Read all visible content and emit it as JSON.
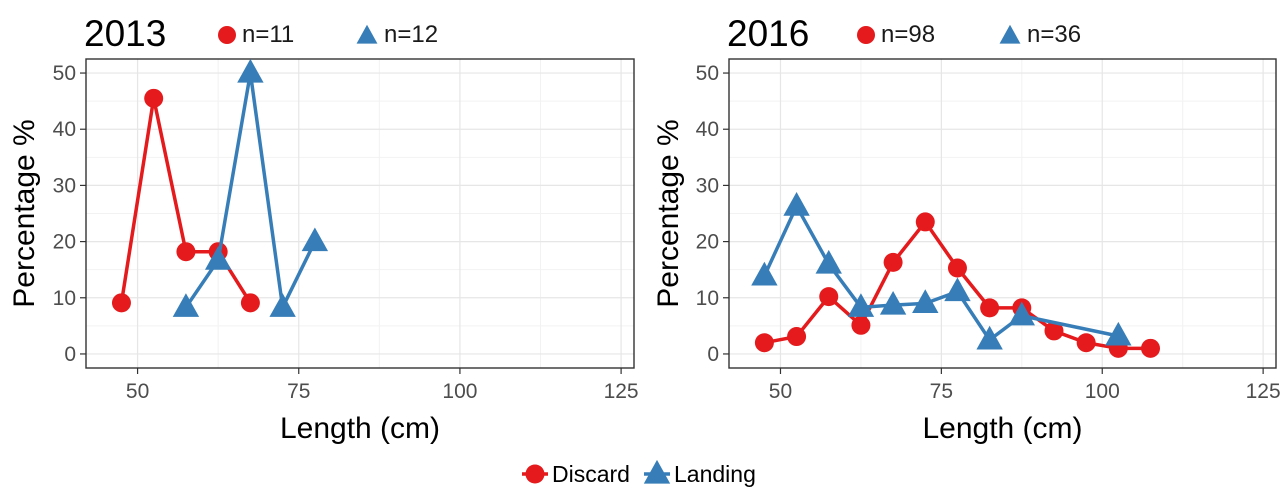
{
  "chart_data": [
    {
      "type": "line",
      "title": "2013",
      "xlabel": "Length (cm)",
      "ylabel": "Percentage %",
      "xlim": [
        42,
        127
      ],
      "ylim": [
        -2.5,
        52.5
      ],
      "xticks": [
        50,
        75,
        100,
        125
      ],
      "yticks": [
        0,
        10,
        20,
        30,
        40,
        50
      ],
      "grid": true,
      "series": [
        {
          "name": "Discard",
          "n_label": "n=11",
          "x": [
            47.5,
            52.5,
            57.5,
            62.5,
            67.5
          ],
          "y": [
            9.1,
            45.5,
            18.2,
            18.2,
            9.1
          ]
        },
        {
          "name": "Landing",
          "n_label": "n=12",
          "x": [
            57.5,
            62.5,
            67.5,
            72.5,
            77.5
          ],
          "y": [
            8.3,
            16.7,
            50.0,
            8.3,
            20.0
          ]
        }
      ]
    },
    {
      "type": "line",
      "title": "2016",
      "xlabel": "Length (cm)",
      "ylabel": "Percentage %",
      "xlim": [
        42,
        127
      ],
      "ylim": [
        -2.5,
        52.5
      ],
      "xticks": [
        50,
        75,
        100,
        125
      ],
      "yticks": [
        0,
        10,
        20,
        30,
        40,
        50
      ],
      "grid": true,
      "series": [
        {
          "name": "Discard",
          "n_label": "n=98",
          "x": [
            47.5,
            52.5,
            57.5,
            62.5,
            67.5,
            72.5,
            77.5,
            82.5,
            87.5,
            92.5,
            97.5,
            102.5,
            107.5
          ],
          "y": [
            2.0,
            3.1,
            10.2,
            5.1,
            16.3,
            23.5,
            15.3,
            8.2,
            8.2,
            4.1,
            2.0,
            1.0,
            1.0
          ]
        },
        {
          "name": "Landing",
          "n_label": "n=36",
          "x": [
            47.5,
            52.5,
            57.5,
            62.5,
            67.5,
            72.5,
            77.5,
            82.5,
            87.5,
            102.5
          ],
          "y": [
            13.9,
            26.3,
            16.0,
            8.3,
            8.7,
            9.0,
            11.1,
            2.5,
            6.8,
            3.2
          ]
        }
      ]
    }
  ],
  "colors": {
    "Discard": "#e41a1c",
    "Landing": "#377eb8"
  },
  "legend": {
    "position": "bottom",
    "items": [
      "Discard",
      "Landing"
    ]
  }
}
